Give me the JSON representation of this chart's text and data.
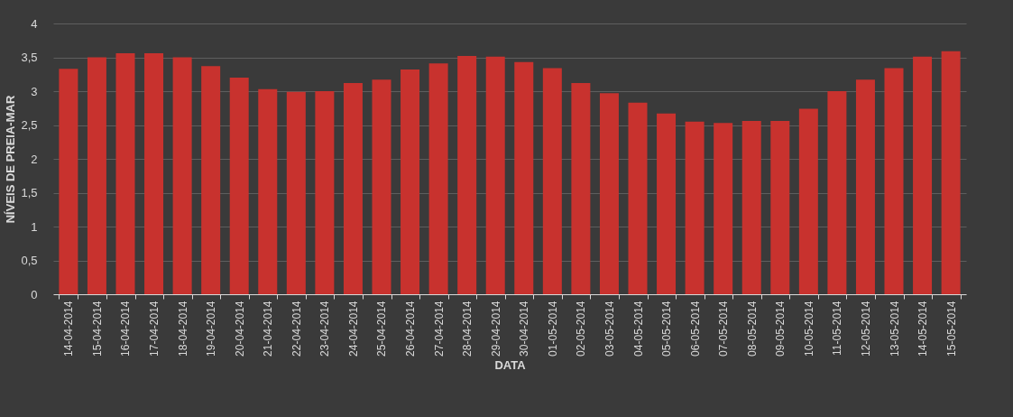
{
  "chart_data": {
    "type": "bar",
    "xlabel": "DATA",
    "ylabel": "NÍVEIS DE PREIA-MAR",
    "categories": [
      "14-04-2014",
      "15-04-2014",
      "16-04-2014",
      "17-04-2014",
      "18-04-2014",
      "19-04-2014",
      "20-04-2014",
      "21-04-2014",
      "22-04-2014",
      "23-04-2014",
      "24-04-2014",
      "25-04-2014",
      "26-04-2014",
      "27-04-2014",
      "28-04-2014",
      "29-04-2014",
      "30-04-2014",
      "01-05-2014",
      "02-05-2014",
      "03-05-2014",
      "04-05-2014",
      "05-05-2014",
      "06-05-2014",
      "07-05-2014",
      "08-05-2014",
      "09-05-2014",
      "10-05-2014",
      "11-05-2014",
      "12-05-2014",
      "13-05-2014",
      "14-05-2014",
      "15-05-2014"
    ],
    "values": [
      3.33,
      3.5,
      3.56,
      3.56,
      3.5,
      3.37,
      3.2,
      3.03,
      2.99,
      3.0,
      3.12,
      3.17,
      3.32,
      3.41,
      3.52,
      3.51,
      3.43,
      3.34,
      3.12,
      2.97,
      2.83,
      2.67,
      2.55,
      2.53,
      2.56,
      2.56,
      2.74,
      3.0,
      3.17,
      3.34,
      3.51,
      3.59
    ],
    "color": "#c8322e",
    "ylim": [
      0,
      4
    ],
    "yticks": [
      0,
      {
        "value": 0.5,
        "label": "0,5"
      },
      1,
      {
        "value": 1.5,
        "label": "1,5"
      },
      2,
      {
        "value": 2.5,
        "label": "2,5"
      },
      3,
      {
        "value": 3.5,
        "label": "3,5"
      },
      4
    ],
    "grid": "y"
  }
}
